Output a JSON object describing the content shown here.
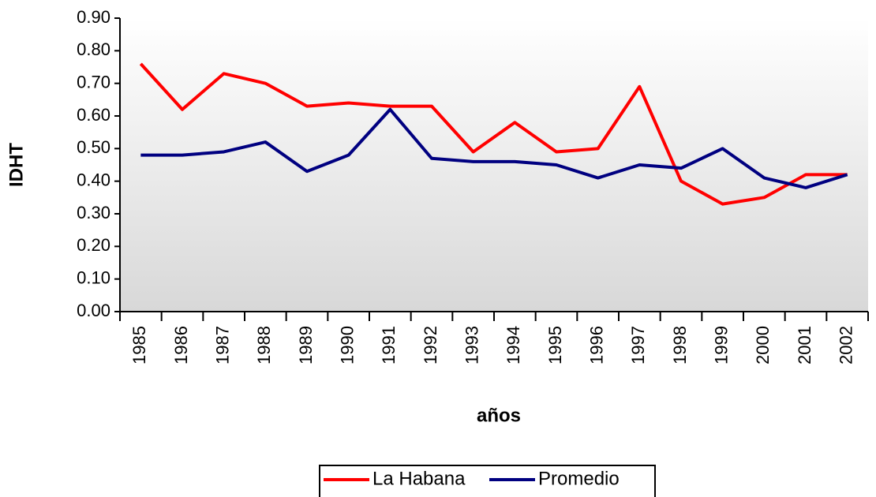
{
  "chart_data": {
    "type": "line",
    "x_label": "años",
    "y_label": "IDHT",
    "categories": [
      "1985",
      "1986",
      "1987",
      "1988",
      "1989",
      "1990",
      "1991",
      "1992",
      "1993",
      "1994",
      "1995",
      "1996",
      "1997",
      "1998",
      "1999",
      "2000",
      "2001",
      "2002"
    ],
    "series": [
      {
        "name": "La Habana",
        "color": "#ff0000",
        "values": [
          0.76,
          0.62,
          0.73,
          0.7,
          0.63,
          0.64,
          0.63,
          0.63,
          0.49,
          0.58,
          0.49,
          0.5,
          0.69,
          0.4,
          0.33,
          0.35,
          0.42,
          0.42
        ]
      },
      {
        "name": "Promedio",
        "color": "#000080",
        "values": [
          0.48,
          0.48,
          0.49,
          0.52,
          0.43,
          0.48,
          0.62,
          0.47,
          0.46,
          0.46,
          0.45,
          0.41,
          0.45,
          0.44,
          0.5,
          0.41,
          0.38,
          0.42
        ]
      }
    ],
    "ylim": [
      0,
      0.9
    ],
    "yticks": [
      {
        "value": 0,
        "label": "0.00"
      },
      {
        "value": 0.1,
        "label": "0.10"
      },
      {
        "value": 0.2,
        "label": "0.20"
      },
      {
        "value": 0.3,
        "label": "0.30"
      },
      {
        "value": 0.4,
        "label": "0.40"
      },
      {
        "value": 0.5,
        "label": "0.50"
      },
      {
        "value": 0.6,
        "label": "0.60"
      },
      {
        "value": 0.7,
        "label": "0.70"
      },
      {
        "value": 0.8,
        "label": "0.80"
      },
      {
        "value": 0.9,
        "label": "0.90"
      }
    ],
    "legend": "bottom"
  }
}
